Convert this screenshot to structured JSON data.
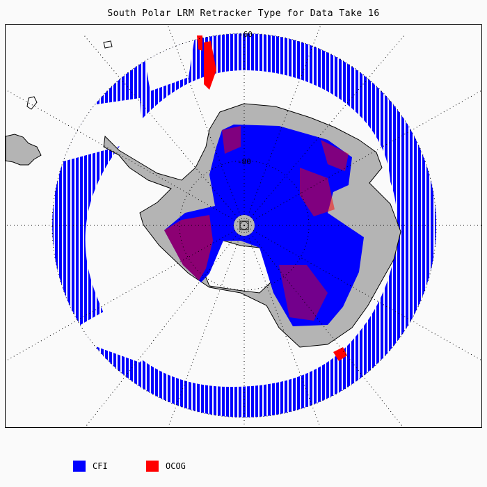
{
  "title": "South Polar LRM Retracker Type for Data Take 16",
  "map": {
    "projection": "south-polar-stereographic",
    "graticule_labels": [
      "-60",
      "-80"
    ],
    "colors": {
      "background": "#fafafa",
      "land": "#b4b4b4",
      "coastline": "#000000",
      "cfi": "#0000ff",
      "ocog": "#ff0000",
      "graticule": "#000000"
    }
  },
  "legend": {
    "items": [
      {
        "label": "CFI",
        "color": "#0000ff"
      },
      {
        "label": "OCOG",
        "color": "#ff0000"
      }
    ]
  }
}
